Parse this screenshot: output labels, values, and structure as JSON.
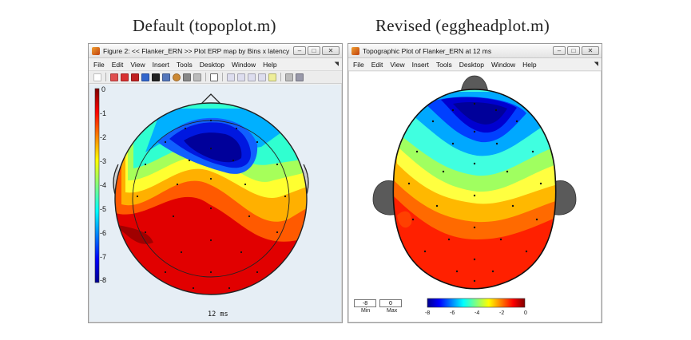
{
  "captions": {
    "left": "Default (topoplot.m)",
    "right": "Revised (eggheadplot.m)"
  },
  "left_window": {
    "title": "Figure 2: << Flanker_ERN >>  Plot ERP map by Bins x latency",
    "menu": [
      "File",
      "Edit",
      "View",
      "Insert",
      "Tools",
      "Desktop",
      "Window",
      "Help"
    ],
    "colorbar_ticks": [
      "0",
      "-1",
      "-2",
      "-3",
      "-4",
      "-5",
      "-6",
      "-7",
      "-8"
    ],
    "time_label": "12 ms",
    "colors": {
      "plot_bg": "#e6eef5"
    }
  },
  "right_window": {
    "title": "Topographic Plot of Flanker_ERN at 12 ms",
    "menu": [
      "File",
      "Edit",
      "View",
      "Insert",
      "Tools",
      "Desktop",
      "Window",
      "Help"
    ],
    "min_value": "-8",
    "max_value": "0",
    "min_label": "Min",
    "max_label": "Max",
    "colorbar_ticks": [
      "-8",
      "-6",
      "-4",
      "-2",
      "0"
    ]
  }
}
